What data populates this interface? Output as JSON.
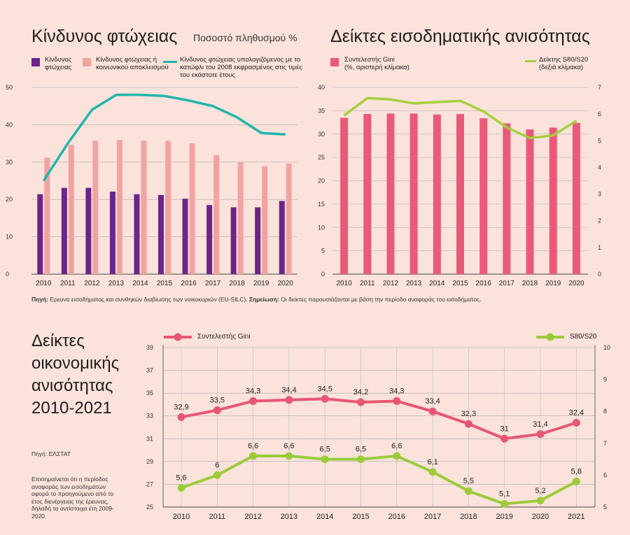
{
  "chart1": {
    "title": "Κίνδυνος φτώχειας",
    "unit": "Ποσοστό πληθυσμού %",
    "legend": [
      {
        "label": "Κίνδυνος φτώχειας",
        "color": "#6a2587"
      },
      {
        "label": "Κίνδυνος φτώχειας ή κοινωνικού αποκλεισμού",
        "color": "#f2a3a0"
      },
      {
        "label": "Κίνδυνος φτώχειας υπολογιζόμενος με το κατώφλι του 2008 εκφρασμένος στις τιμές του εκάστοτε έτους",
        "color": "#1fb5aa"
      }
    ]
  },
  "chart2": {
    "title": "Δείκτες εισοδηματικής ανισότητας",
    "legend": [
      {
        "label": "Συντελεστής Gini",
        "sub": "(%, αριστερή κλίμακα)",
        "color": "#ea5a78"
      },
      {
        "label": "Δείκτης S80/S20",
        "sub": "(δεξιά κλίμακα)",
        "color": "#a5cf3d"
      }
    ]
  },
  "notes": {
    "source_label": "Πηγή:",
    "source_text": "Ερευνα εισοδήματος και συνθηκών διαβίωσης των νοικοκυριών (EU-SILC).",
    "note_label": "Σημείωση:",
    "note_text": "Οι δείκτες παρουσιάζονται με βάση την περίοδο αναφοράς του εισοδήματος."
  },
  "chart3": {
    "title_lines": [
      "Δείκτες",
      "οικονομικής",
      "ανισότητας",
      "2010-2021"
    ],
    "source": "Πηγή: ΕΛΣΤΑΤ",
    "footnote": "Επισημαίνεται ότι η περίοδος αναφοράς των εισοδημάτων αφορά το προηγούμενο από το έτος διενέργειας της έρευνας, δηλαδή τα αντίστοιχα έτη 2009-2020.",
    "legend": [
      {
        "label": "Συντελεστής Gini",
        "color": "#e75673"
      },
      {
        "label": "S80/S20",
        "color": "#9bcb3b"
      }
    ]
  },
  "chart_data": [
    {
      "type": "bar",
      "title": "Κίνδυνος φτώχειας",
      "ylabel": "Ποσοστό πληθυσμού %",
      "categories": [
        "2010",
        "2011",
        "2012",
        "2013",
        "2014",
        "2015",
        "2016",
        "2017",
        "2018",
        "2019",
        "2020"
      ],
      "ylim": [
        0,
        50
      ],
      "yticks": [
        0,
        10,
        20,
        30,
        40,
        50
      ],
      "grid": true,
      "legend_position": "top",
      "series": [
        {
          "name": "Κίνδυνος φτώχειας",
          "type": "bar",
          "color": "#6a2587",
          "values": [
            21.4,
            23.1,
            23.1,
            22.1,
            21.4,
            21.2,
            20.2,
            18.5,
            17.9,
            17.9,
            19.6
          ]
        },
        {
          "name": "Κίνδυνος φτώχειας ή κοινωνικού αποκλεισμού",
          "type": "bar",
          "color": "#f2a3a0",
          "values": [
            31.2,
            34.6,
            35.7,
            35.9,
            35.7,
            35.7,
            35.0,
            31.9,
            30.0,
            28.9,
            29.6
          ]
        },
        {
          "name": "Κίνδυνος φτώχειας υπολογιζόμενος με το κατώφλι του 2008 εκφρασμένος στις τιμές του εκάστοτε έτους",
          "type": "line",
          "color": "#1fb5aa",
          "values": [
            25.0,
            35.0,
            44.0,
            48.0,
            48.0,
            47.7,
            46.5,
            45.0,
            42.0,
            37.8,
            37.4
          ]
        }
      ]
    },
    {
      "type": "bar",
      "title": "Δείκτες εισοδηματικής ανισότητας",
      "categories": [
        "2010",
        "2011",
        "2012",
        "2013",
        "2014",
        "2015",
        "2016",
        "2017",
        "2018",
        "2019",
        "2020"
      ],
      "ylim": [
        0,
        40
      ],
      "yticks": [
        0,
        5,
        10,
        15,
        20,
        25,
        30,
        35,
        40
      ],
      "y2lim": [
        0,
        7
      ],
      "y2ticks": [
        0,
        1,
        2,
        3,
        4,
        5,
        6,
        7
      ],
      "grid": true,
      "legend_position": "top",
      "series": [
        {
          "name": "Συντελεστής Gini",
          "type": "bar",
          "axis": "left",
          "color": "#ea5a78",
          "values": [
            33.5,
            34.3,
            34.4,
            34.4,
            34.2,
            34.3,
            33.4,
            32.3,
            31.0,
            31.4,
            32.4
          ]
        },
        {
          "name": "Δείκτης S80/S20",
          "type": "line",
          "axis": "right",
          "color": "#a5cf3d",
          "values": [
            5.95,
            6.6,
            6.55,
            6.4,
            6.45,
            6.5,
            6.1,
            5.5,
            5.1,
            5.2,
            5.75
          ]
        }
      ]
    },
    {
      "type": "line",
      "title": "Δείκτες οικονομικής ανισότητας 2010-2021",
      "categories": [
        "2010",
        "2011",
        "2012",
        "2013",
        "2014",
        "2015",
        "2016",
        "2017",
        "2018",
        "2019",
        "2020",
        "2021"
      ],
      "ylim": [
        25,
        39
      ],
      "yticks": [
        25,
        27,
        29,
        31,
        33,
        35,
        37,
        39
      ],
      "y2lim": [
        5,
        10
      ],
      "y2ticks": [
        5,
        6,
        7,
        8,
        9,
        10
      ],
      "grid": true,
      "legend_position": "top",
      "series": [
        {
          "name": "Συντελεστής Gini",
          "axis": "left",
          "color": "#e75673",
          "values": [
            32.9,
            33.5,
            34.3,
            34.4,
            34.5,
            34.2,
            34.3,
            33.4,
            32.3,
            31,
            31.4,
            32.4
          ],
          "labels": [
            "32,9",
            "33,5",
            "34,3",
            "34,4",
            "34,5",
            "34,2",
            "34,3",
            "33,4",
            "32,3",
            "31",
            "31,4",
            "32,4"
          ]
        },
        {
          "name": "S80/S20",
          "axis": "right",
          "color": "#9bcb3b",
          "values": [
            5.6,
            6,
            6.6,
            6.6,
            6.5,
            6.5,
            6.6,
            6.1,
            5.5,
            5.1,
            5.2,
            5.8
          ],
          "labels": [
            "5,6",
            "6",
            "6,6",
            "6,6",
            "6,5",
            "6,5",
            "6,6",
            "6,1",
            "5,5",
            "5,1",
            "5,2",
            "5,8"
          ]
        }
      ]
    }
  ]
}
